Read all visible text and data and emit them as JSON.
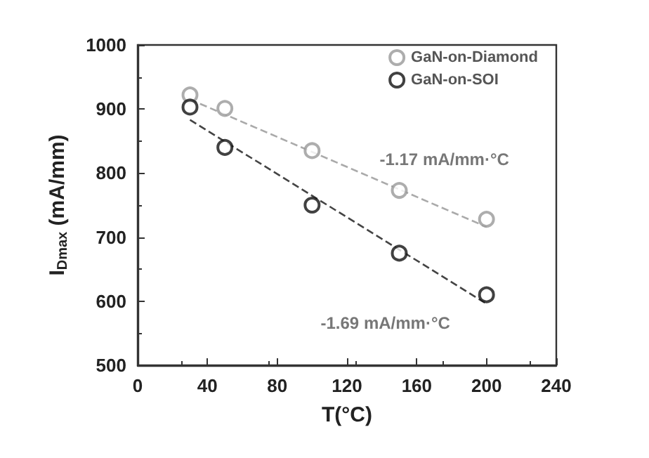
{
  "chart_data": {
    "type": "scatter",
    "xlabel": "T(°C)",
    "ylabel": "I$_{Dmax}$ (mA/mm)",
    "xlim": [
      0,
      240
    ],
    "xticks": [
      0,
      40,
      80,
      120,
      160,
      200,
      240
    ],
    "ylim": [
      500,
      1000
    ],
    "yticks": [
      500,
      600,
      700,
      800,
      900,
      1000
    ],
    "marker": "circle",
    "legend": "top right",
    "grid": false,
    "series": [
      {
        "name": "GaN-on-Diamond",
        "color": "#999999",
        "x": [
          30,
          50,
          100,
          150,
          200
        ],
        "values": [
          922,
          901,
          835,
          773,
          728
        ]
      },
      {
        "name": "GaN-on-SOI",
        "color": "#111111",
        "x": [
          30,
          50,
          100,
          150,
          200
        ],
        "values": [
          903,
          840,
          750,
          675,
          610
        ]
      },
      {
        "type": "line",
        "color": "#aaaaaa",
        "line_style": "dashed",
        "marker": "none",
        "x": [
          30,
          200
        ],
        "values": [
          915,
          716
        ]
      },
      {
        "type": "line",
        "color": "#444444",
        "line_style": "dashed",
        "marker": "none",
        "x": [
          30,
          200
        ],
        "values": [
          883,
          596
        ]
      }
    ],
    "annotations": [
      "-1.17 mA/mm·°C",
      "-1.69 mA/mm·°C"
    ]
  }
}
